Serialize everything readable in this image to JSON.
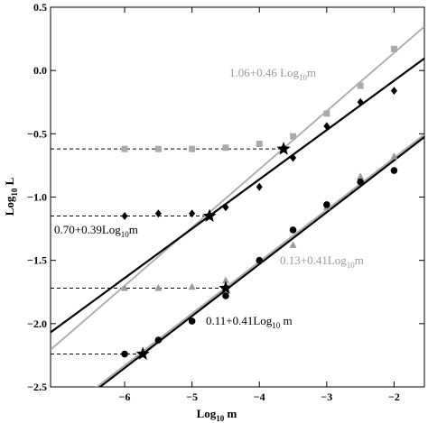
{
  "chart_data": {
    "type": "scatter",
    "xlabel": "Log",
    "xlabel_sub": "10",
    "xlabel_tail": " m",
    "ylabel": "Log",
    "ylabel_sub": "10",
    "ylabel_tail": " L",
    "xlim": [
      -7.1,
      -1.55
    ],
    "ylim": [
      -2.5,
      0.5
    ],
    "x_ticks": [
      -6,
      -5,
      -4,
      -3,
      -2
    ],
    "x_tick_labels": [
      "−6",
      "−5",
      "−4",
      "−3",
      "−2"
    ],
    "y_ticks": [
      0.5,
      0.0,
      -0.5,
      -1.0,
      -1.5,
      -2.0,
      -2.5
    ],
    "y_tick_labels": [
      "0.5",
      "0.0",
      "−0.5",
      "−1.0",
      "−1.5",
      "−2.0",
      "−2.5"
    ],
    "grid": false,
    "series": [
      {
        "marker": "square",
        "color": "#aaaaaa",
        "x": [
          -6,
          -5.5,
          -5,
          -4.5,
          -4,
          -3.5,
          -3,
          -2.5,
          -2
        ],
        "y": [
          -0.62,
          -0.62,
          -0.62,
          -0.61,
          -0.58,
          -0.52,
          -0.34,
          -0.12,
          0.17
        ]
      },
      {
        "marker": "diamond",
        "color": "#000000",
        "x": [
          -6,
          -5.5,
          -5,
          -4.5,
          -4,
          -3.5,
          -3,
          -2.5,
          -2
        ],
        "y": [
          -1.15,
          -1.13,
          -1.13,
          -1.08,
          -0.92,
          -0.69,
          -0.44,
          -0.25,
          -0.16
        ]
      },
      {
        "marker": "triangle",
        "color": "#999999",
        "x": [
          -6,
          -5.5,
          -5,
          -4.5,
          -4,
          -3.5,
          -3,
          -2.5,
          -2
        ],
        "y": [
          -1.72,
          -1.72,
          -1.71,
          -1.66,
          -1.5,
          -1.38,
          -1.08,
          -0.84,
          -0.68
        ]
      },
      {
        "marker": "circle",
        "color": "#000000",
        "x": [
          -6,
          -5.5,
          -5,
          -4.5,
          -4,
          -3.5,
          -3,
          -2.5,
          -2
        ],
        "y": [
          -2.24,
          -2.13,
          -1.98,
          -1.78,
          -1.5,
          -1.26,
          -1.06,
          -0.88,
          -0.79
        ]
      }
    ],
    "fit_lines": [
      {
        "intercept": 1.06,
        "slope": 0.46,
        "color": "#aaaaaa",
        "width": 1.8
      },
      {
        "intercept": 0.7,
        "slope": 0.39,
        "color": "#000000",
        "width": 2.2
      },
      {
        "intercept": 0.13,
        "slope": 0.41,
        "color": "#aaaaaa",
        "width": 1.8
      },
      {
        "intercept": 0.11,
        "slope": 0.41,
        "color": "#000000",
        "width": 2.2
      }
    ],
    "thresholds": [
      {
        "y": -0.62,
        "x_from": -7.1,
        "x_to": -3.64
      },
      {
        "y": -1.15,
        "x_from": -7.1,
        "x_to": -4.74
      },
      {
        "y": -1.72,
        "x_from": -7.1,
        "x_to": -4.5
      },
      {
        "y": -2.24,
        "x_from": -7.1,
        "x_to": -5.73
      }
    ],
    "stars": [
      {
        "x": -3.64,
        "y": -0.62
      },
      {
        "x": -4.74,
        "y": -1.15
      },
      {
        "x": -4.5,
        "y": -1.72
      },
      {
        "x": -5.73,
        "y": -2.24
      }
    ],
    "annotations": [
      {
        "text": "1.06+0.46 Log",
        "sub": "10",
        "tail": "m",
        "color": "#999999"
      },
      {
        "text": "0.70+0.39Log",
        "sub": "10",
        "tail": "m",
        "color": "#000000"
      },
      {
        "text": "0.13+0.41Log",
        "sub": "10",
        "tail": "m",
        "color": "#999999"
      },
      {
        "text": "0.11+0.41Log",
        "sub": "10",
        "tail": " m",
        "color": "#000000"
      }
    ]
  }
}
